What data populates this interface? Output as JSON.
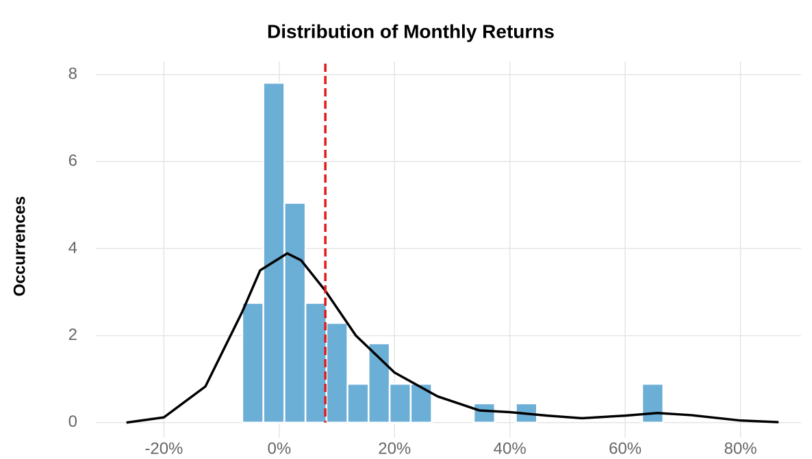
{
  "chart_data": {
    "type": "histogram",
    "title": "Distribution of Monthly Returns",
    "ylabel": "Occurrences",
    "bins": [
      -6.4,
      -2.75,
      0.9,
      4.55,
      8.2,
      11.85,
      15.5,
      19.15,
      22.8,
      26.45,
      30.1,
      33.75,
      37.4,
      41.05,
      44.7,
      48.35,
      52,
      55.65,
      59.3,
      62.95,
      66.6
    ],
    "counts": [
      2.75,
      7.81,
      5.05,
      2.75,
      2.29,
      0.89,
      1.82,
      0.89,
      0.89,
      0,
      0,
      0.44,
      0,
      0.44,
      0,
      0,
      0,
      0,
      0,
      0.89
    ],
    "color": "#6baed6",
    "density": {
      "color": "#000000",
      "x": [
        -26.5,
        -20,
        -12.8,
        -6.4,
        -3.3,
        1.4,
        3.8,
        8,
        13.3,
        20,
        27.5,
        34.7,
        40,
        46.5,
        52.5,
        60,
        65.6,
        71.5,
        79.8,
        86.6
      ],
      "y": [
        0,
        0.12,
        0.83,
        2.55,
        3.5,
        3.89,
        3.73,
        3.03,
        2.0,
        1.15,
        0.6,
        0.28,
        0.24,
        0.16,
        0.1,
        0.16,
        0.22,
        0.17,
        0.05,
        0.01
      ]
    },
    "mean_line": {
      "x": 8.0,
      "color": "#e31a1c"
    },
    "xlim": [
      -31.8,
      90.5
    ],
    "ylim": [
      -0.35,
      8.3
    ],
    "xticks": [
      {
        "value": -20,
        "label": "-20%"
      },
      {
        "value": 0,
        "label": "0%"
      },
      {
        "value": 20,
        "label": "20%"
      },
      {
        "value": 40,
        "label": "40%"
      },
      {
        "value": 60,
        "label": "60%"
      },
      {
        "value": 80,
        "label": "80%"
      }
    ],
    "yticks": [
      0,
      2,
      4,
      6,
      8
    ],
    "grid": true
  }
}
